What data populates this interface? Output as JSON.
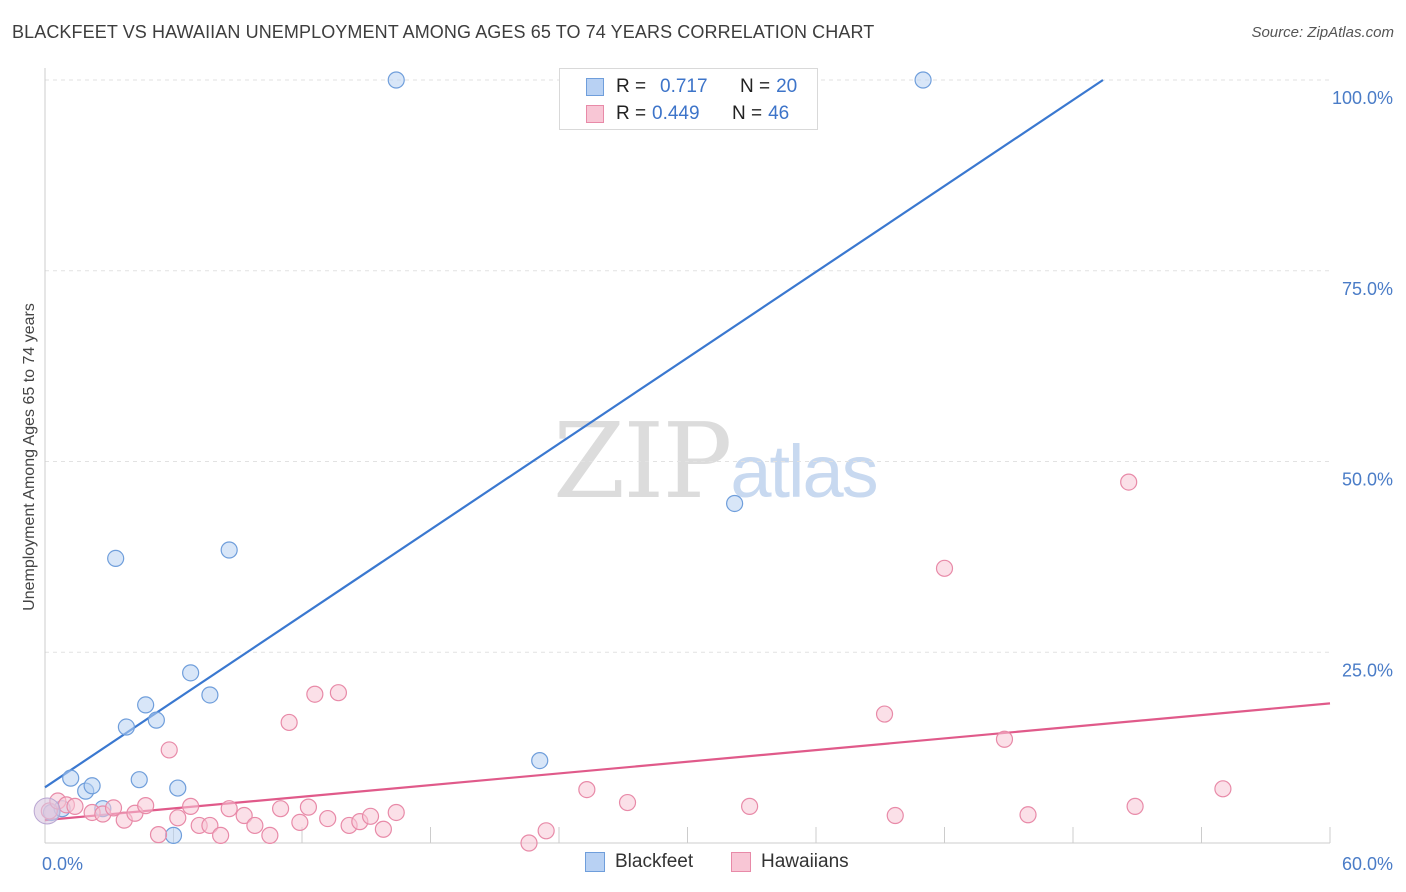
{
  "title": "BLACKFEET VS HAWAIIAN UNEMPLOYMENT AMONG AGES 65 TO 74 YEARS CORRELATION CHART",
  "source": "Source: ZipAtlas.com",
  "watermark": {
    "zip": "ZIP",
    "atlas": "atlas"
  },
  "legend_top": [
    {
      "r_label": "R =",
      "r_value": "0.717",
      "n_label": "N =",
      "n_value": "20",
      "fill": "#b8d1f3",
      "stroke": "#6f9edb"
    },
    {
      "r_label": "R =",
      "r_value": "0.449",
      "n_label": "N =",
      "n_value": "46",
      "fill": "#f8c6d5",
      "stroke": "#e88aa8"
    }
  ],
  "legend_bottom": [
    {
      "label": "Blackfeet",
      "fill": "#b8d1f3",
      "stroke": "#6f9edb"
    },
    {
      "label": "Hawaiians",
      "fill": "#f8c6d5",
      "stroke": "#e88aa8"
    }
  ],
  "chart_data": {
    "type": "scatter",
    "title": "BLACKFEET VS HAWAIIAN UNEMPLOYMENT AMONG AGES 65 TO 74 YEARS CORRELATION CHART",
    "xlabel": "",
    "ylabel": "Unemployment Among Ages 65 to 74 years",
    "xlim": [
      0,
      60
    ],
    "ylim": [
      0,
      100
    ],
    "x_ticks": [
      "0.0%",
      "60.0%"
    ],
    "y_ticks": [
      {
        "value": 100,
        "label": "100.0%"
      },
      {
        "value": 75,
        "label": "75.0%"
      },
      {
        "value": 50,
        "label": "50.0%"
      },
      {
        "value": 25,
        "label": "25.0%"
      }
    ],
    "series": [
      {
        "name": "Blackfeet",
        "color": "#3a78d0",
        "fill": "#b8d1f3",
        "stroke": "#6f9edb",
        "points": [
          [
            0.3,
            4.0
          ],
          [
            0.8,
            4.5
          ],
          [
            1.2,
            8.5
          ],
          [
            1.9,
            6.8
          ],
          [
            2.2,
            7.5
          ],
          [
            2.7,
            4.5
          ],
          [
            3.3,
            37.3
          ],
          [
            3.8,
            15.2
          ],
          [
            4.4,
            8.3
          ],
          [
            4.7,
            18.1
          ],
          [
            5.2,
            16.1
          ],
          [
            6.0,
            1.0
          ],
          [
            6.2,
            7.2
          ],
          [
            6.8,
            22.3
          ],
          [
            7.7,
            19.4
          ],
          [
            8.6,
            38.4
          ],
          [
            16.4,
            100.0
          ],
          [
            23.1,
            10.8
          ],
          [
            32.2,
            44.5
          ],
          [
            41.0,
            100.0
          ]
        ],
        "trend": {
          "x": [
            0,
            49.4
          ],
          "y": [
            7.3,
            100.0
          ]
        }
      },
      {
        "name": "Hawaiians",
        "color": "#e05a8a",
        "fill": "#f8c6d5",
        "stroke": "#e88aa8",
        "points": [
          [
            0.2,
            4.2
          ],
          [
            0.6,
            5.5
          ],
          [
            1.0,
            5.0
          ],
          [
            1.4,
            4.8
          ],
          [
            2.2,
            4.0
          ],
          [
            2.7,
            3.8
          ],
          [
            3.2,
            4.6
          ],
          [
            3.7,
            3.0
          ],
          [
            4.2,
            3.9
          ],
          [
            4.7,
            4.9
          ],
          [
            5.3,
            1.1
          ],
          [
            5.8,
            12.2
          ],
          [
            6.2,
            3.3
          ],
          [
            6.8,
            4.8
          ],
          [
            7.2,
            2.3
          ],
          [
            7.7,
            2.3
          ],
          [
            8.2,
            1.0
          ],
          [
            8.6,
            4.5
          ],
          [
            9.3,
            3.6
          ],
          [
            9.8,
            2.3
          ],
          [
            10.5,
            1.0
          ],
          [
            11.0,
            4.5
          ],
          [
            11.4,
            15.8
          ],
          [
            11.9,
            2.7
          ],
          [
            12.3,
            4.7
          ],
          [
            12.6,
            19.5
          ],
          [
            13.2,
            3.2
          ],
          [
            13.7,
            19.7
          ],
          [
            14.2,
            2.3
          ],
          [
            14.7,
            2.8
          ],
          [
            15.2,
            3.5
          ],
          [
            15.8,
            1.8
          ],
          [
            16.4,
            4.0
          ],
          [
            22.6,
            0.0
          ],
          [
            23.4,
            1.6
          ],
          [
            25.3,
            7.0
          ],
          [
            27.2,
            5.3
          ],
          [
            32.9,
            4.8
          ],
          [
            39.2,
            16.9
          ],
          [
            39.7,
            3.6
          ],
          [
            42.0,
            36.0
          ],
          [
            44.8,
            13.6
          ],
          [
            45.9,
            3.7
          ],
          [
            50.6,
            47.3
          ],
          [
            50.9,
            4.8
          ],
          [
            55.0,
            7.1
          ]
        ],
        "trend": {
          "x": [
            0,
            60
          ],
          "y": [
            3.0,
            18.3
          ]
        }
      }
    ]
  }
}
